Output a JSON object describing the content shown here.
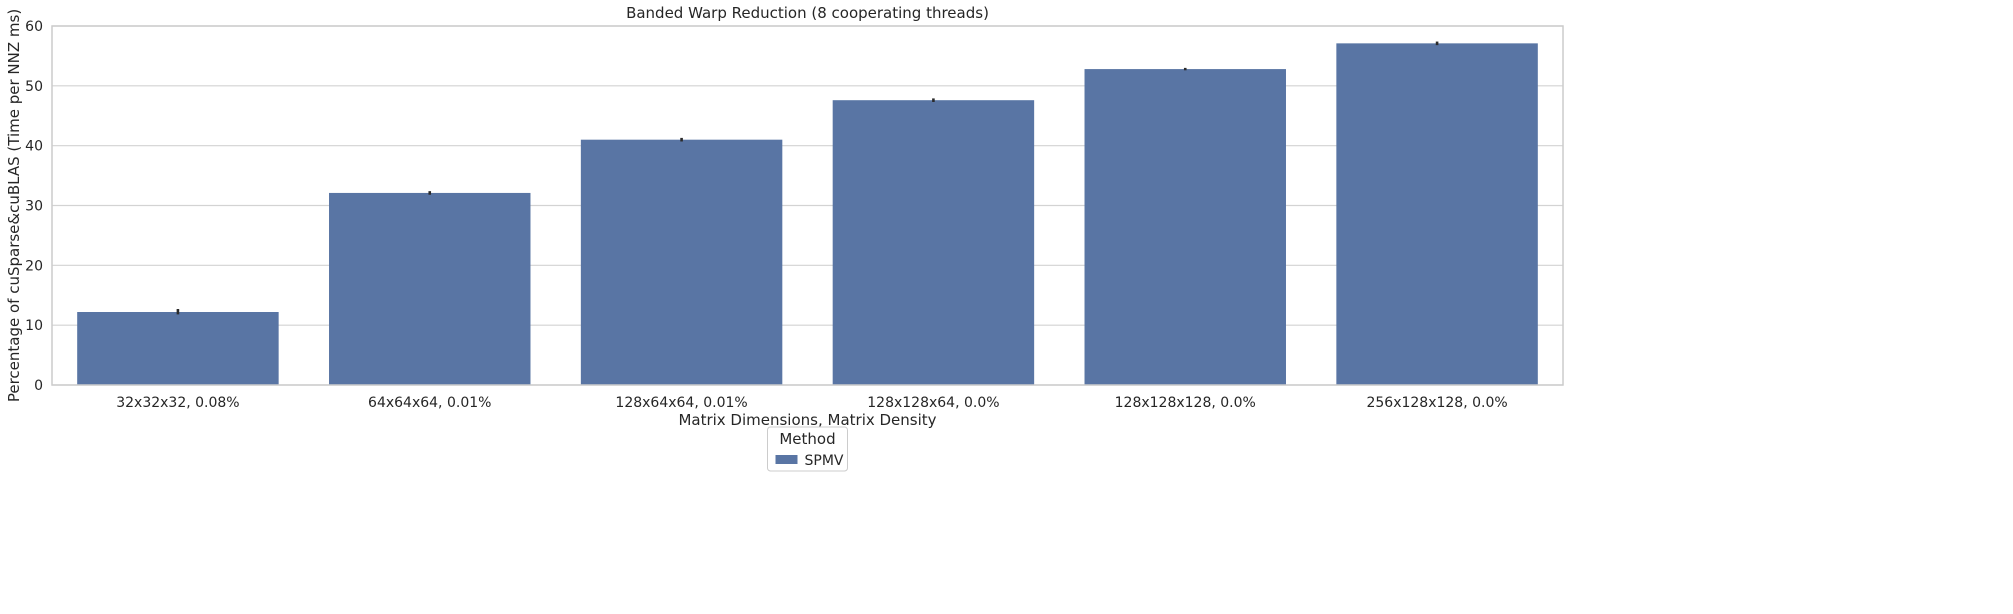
{
  "chart_data": {
    "type": "bar",
    "title": "Banded Warp Reduction (8 cooperating threads)",
    "xlabel": "Matrix Dimensions, Matrix Density",
    "ylabel": "Percentage of cuSparse&cuBLAS (Time per NNZ ms)",
    "categories": [
      "32x32x32, 0.08%",
      "64x64x64, 0.01%",
      "128x64x64, 0.01%",
      "128x128x64, 0.0%",
      "128x128x128, 0.0%",
      "256x128x128, 0.0%"
    ],
    "series": [
      {
        "name": "SPMV",
        "values": [
          12.2,
          32.1,
          41.0,
          47.6,
          52.8,
          57.1
        ],
        "error_low": [
          11.8,
          31.8,
          40.7,
          47.3,
          52.6,
          56.8
        ],
        "error_high": [
          12.7,
          32.4,
          41.3,
          47.9,
          53.0,
          57.4
        ],
        "color": "#5975a4"
      }
    ],
    "ylim": [
      0,
      60
    ],
    "yticks": [
      0,
      10,
      20,
      30,
      40,
      50,
      60
    ],
    "grid": "horizontal",
    "legend": {
      "title": "Method",
      "placement": "bottom-center"
    }
  },
  "colors": {
    "grid": "#d3d3d3",
    "frame": "#cccccc",
    "errorbar": "#2b2b2b",
    "text": "#262626"
  }
}
